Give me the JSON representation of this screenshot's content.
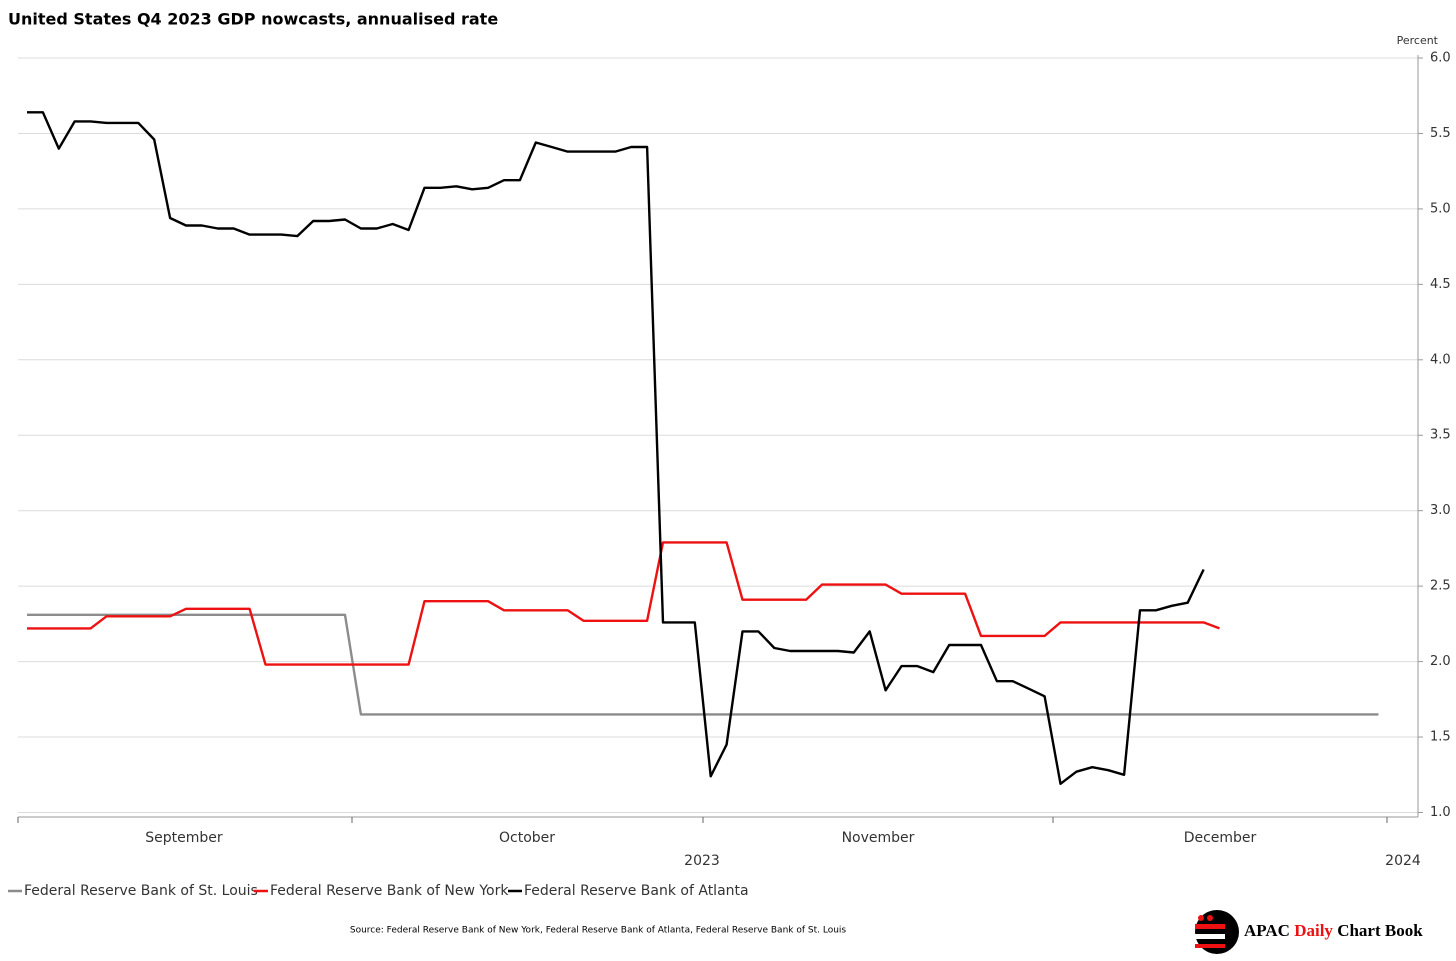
{
  "chart_data": {
    "type": "line",
    "title": "United States Q4 2023 GDP nowcasts, annualised rate",
    "y_axis_label": "Percent",
    "month_labels": [
      "September",
      "October",
      "November",
      "December"
    ],
    "year_labels": [
      "2023",
      "2024"
    ],
    "source": "Source: Federal Reserve Bank of New York, Federal Reserve Bank of Atlanta, Federal Reserve Bank of St. Louis",
    "brand": [
      "APAC",
      "Daily",
      "Chart Book"
    ],
    "ylim": [
      0.97,
      6.02
    ],
    "yticks": [
      {
        "value": 1,
        "label": "1.0"
      },
      1.5,
      {
        "value": 2,
        "label": "2.0"
      },
      2.5,
      {
        "value": 3,
        "label": "3.0"
      },
      3.5,
      {
        "value": 4,
        "label": "4.0"
      },
      4.5,
      {
        "value": 5,
        "label": "5.0"
      },
      5.5,
      {
        "value": 6,
        "label": "6.0"
      }
    ],
    "grid": true,
    "series": [
      {
        "name": "Federal Reserve Bank of St. Louis",
        "color": "#8c8c8c",
        "values": [
          2.31,
          2.31,
          2.31,
          2.31,
          2.31,
          2.31,
          2.31,
          2.31,
          2.31,
          2.31,
          2.31,
          2.31,
          2.31,
          2.31,
          2.31,
          2.31,
          2.31,
          2.31,
          2.31,
          2.31,
          2.31,
          1.65,
          1.65,
          1.65,
          1.65,
          1.65,
          1.65,
          1.65,
          1.65,
          1.65,
          1.65,
          1.65,
          1.65,
          1.65,
          1.65,
          1.65,
          1.65,
          1.65,
          1.65,
          1.65,
          1.65,
          1.65,
          1.65,
          1.65,
          1.65,
          1.65,
          1.65,
          1.65,
          1.65,
          1.65,
          1.65,
          1.65,
          1.65,
          1.65,
          1.65,
          1.65,
          1.65,
          1.65,
          1.65,
          1.65,
          1.65,
          1.65,
          1.65,
          1.65,
          1.65,
          1.65,
          1.65,
          1.65,
          1.65,
          1.65,
          1.65,
          1.65,
          1.65,
          1.65,
          1.65,
          1.65,
          1.65,
          1.65,
          1.65,
          1.65,
          1.65,
          1.65,
          1.65,
          1.65,
          1.65,
          1.65
        ]
      },
      {
        "name": "Federal Reserve Bank of New York",
        "color": "#ee1111",
        "values": [
          2.22,
          2.22,
          2.22,
          2.22,
          2.22,
          2.3,
          2.3,
          2.3,
          2.3,
          2.3,
          2.35,
          2.35,
          2.35,
          2.35,
          2.35,
          1.98,
          1.98,
          1.98,
          1.98,
          1.98,
          1.98,
          1.98,
          1.98,
          1.98,
          1.98,
          2.4,
          2.4,
          2.4,
          2.4,
          2.4,
          2.34,
          2.34,
          2.34,
          2.34,
          2.34,
          2.27,
          2.27,
          2.27,
          2.27,
          2.27,
          2.79,
          2.79,
          2.79,
          2.79,
          2.79,
          2.41,
          2.41,
          2.41,
          2.41,
          2.41,
          2.51,
          2.51,
          2.51,
          2.51,
          2.51,
          2.45,
          2.45,
          2.45,
          2.45,
          2.45,
          2.17,
          2.17,
          2.17,
          2.17,
          2.17,
          2.26,
          2.26,
          2.26,
          2.26,
          2.26,
          2.26,
          2.26,
          2.26,
          2.26,
          2.26,
          2.22,
          null,
          null,
          null,
          null,
          null,
          null,
          null,
          null,
          null,
          null
        ]
      },
      {
        "name": "Federal Reserve Bank of Atlanta",
        "color": "#000000",
        "values": [
          5.64,
          5.64,
          5.4,
          5.58,
          5.58,
          5.57,
          5.57,
          5.57,
          5.46,
          4.94,
          4.89,
          4.89,
          4.87,
          4.87,
          4.83,
          4.83,
          4.83,
          4.82,
          4.92,
          4.92,
          4.93,
          4.87,
          4.87,
          4.9,
          4.86,
          5.14,
          5.14,
          5.15,
          5.13,
          5.14,
          5.19,
          5.19,
          5.44,
          5.41,
          5.38,
          5.38,
          5.38,
          5.38,
          5.41,
          5.41,
          2.26,
          2.26,
          2.26,
          1.24,
          1.45,
          2.2,
          2.2,
          2.09,
          2.07,
          2.07,
          2.07,
          2.07,
          2.06,
          2.2,
          1.81,
          1.97,
          1.97,
          1.93,
          2.11,
          2.11,
          2.11,
          1.87,
          1.87,
          1.82,
          1.77,
          1.19,
          1.27,
          1.3,
          1.28,
          1.25,
          2.34,
          2.34,
          2.37,
          2.39,
          2.61,
          null,
          null,
          null,
          null,
          null,
          null,
          null,
          null,
          null,
          null,
          null
        ]
      }
    ]
  }
}
